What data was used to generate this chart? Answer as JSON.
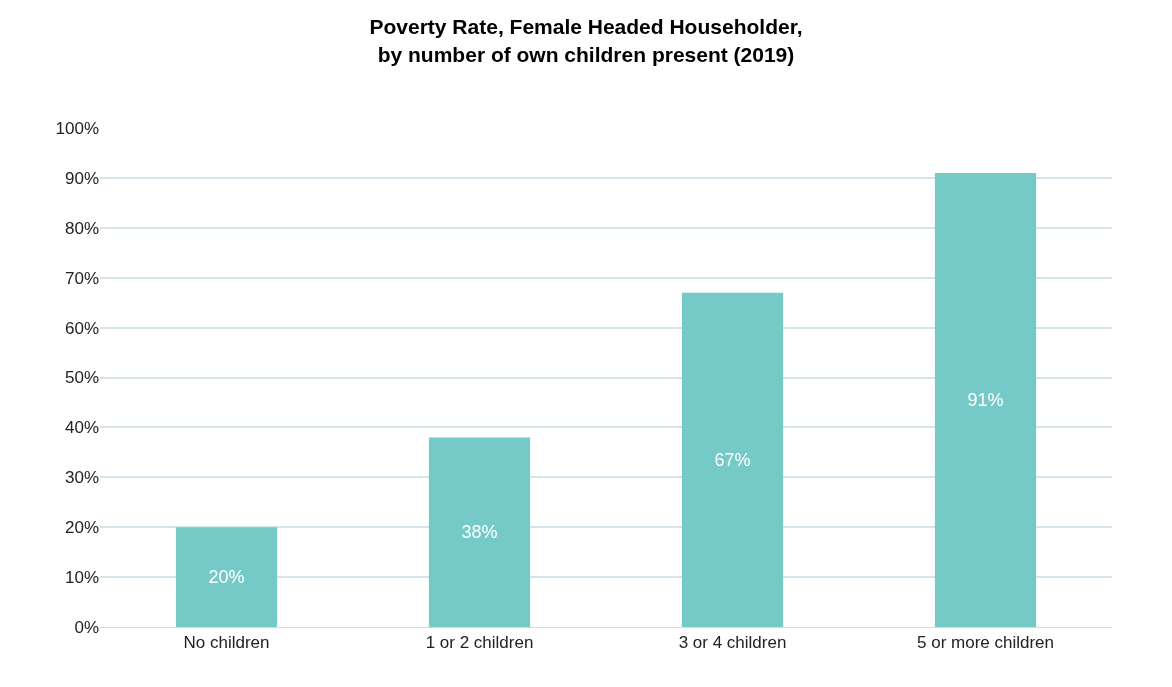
{
  "chart_data": {
    "type": "bar",
    "title": "Poverty Rate, Female Headed Householder,\nby number of own children present (2019)",
    "categories": [
      "No children",
      "1 or 2 children",
      "3 or 4 children",
      "5 or more children"
    ],
    "values": [
      20,
      38,
      67,
      91
    ],
    "value_labels": [
      "20%",
      "38%",
      "67%",
      "91%"
    ],
    "color": "#75cac8",
    "ylim": [
      0,
      100
    ],
    "yticks": [
      {
        "value": 0,
        "label": "0%"
      },
      {
        "value": 10,
        "label": "10%"
      },
      {
        "value": 20,
        "label": "20%"
      },
      {
        "value": 30,
        "label": "30%"
      },
      {
        "value": 40,
        "label": "40%"
      },
      {
        "value": 50,
        "label": "50%"
      },
      {
        "value": 60,
        "label": "60%"
      },
      {
        "value": 70,
        "label": "70%"
      },
      {
        "value": 80,
        "label": "80%"
      },
      {
        "value": 90,
        "label": "90%"
      },
      {
        "value": 100,
        "label": "100%"
      }
    ],
    "grid": "y",
    "legend": false
  }
}
